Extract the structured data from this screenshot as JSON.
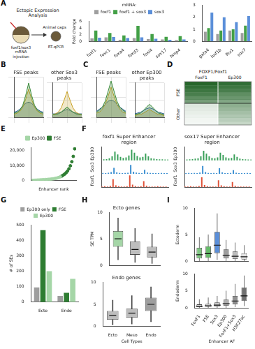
{
  "schematic": {
    "panel": "A",
    "title": "Ectopic Expression Analysis",
    "labels": [
      "foxf1/sox3 mRNA injection",
      "Animal caps",
      "RT-qPCR"
    ]
  },
  "heatmap": {
    "panel": "D",
    "title": "FOXF1/Foxf1",
    "columns": [
      "FoxF1",
      "Ep300"
    ],
    "color": "#1b5e20",
    "row_groups": [
      {
        "label": "FSE",
        "cells": [
          [
            0.95,
            0.9
          ],
          [
            0.9,
            0.85
          ],
          [
            0.85,
            0.8
          ],
          [
            0.8,
            0.7
          ],
          [
            0.7,
            0.65
          ],
          [
            0.6,
            0.55
          ]
        ]
      },
      {
        "label": "Other",
        "cells": [
          [
            0.15,
            0.5
          ],
          [
            0.12,
            0.45
          ],
          [
            0.1,
            0.4
          ],
          [
            0.08,
            0.35
          ],
          [
            0.06,
            0.3
          ],
          [
            0.05,
            0.25
          ]
        ]
      }
    ]
  },
  "chart_data": [
    {
      "type": "bar",
      "legend": "top",
      "legend_title": "mRNA:",
      "ylabel": "Fold change",
      "categories": [
        "foxf1",
        "foxc1",
        "foxa4",
        "foxd3",
        "foxi4",
        "sox17",
        "bmp4"
      ],
      "series": [
        {
          "name": "foxf1",
          "color": "#9e9e9e",
          "values": [
            0.9,
            1.2,
            0.5,
            1.0,
            0.7,
            0.6,
            0.4
          ]
        },
        {
          "name": "foxf1 + sox3",
          "color": "#43a047",
          "values": [
            3.2,
            2.5,
            1.8,
            4.6,
            2.2,
            1.4,
            1.6
          ]
        },
        {
          "name": "sox3",
          "color": "#5b8fd9",
          "values": [
            1.1,
            1.3,
            1.0,
            1.2,
            0.8,
            0.5,
            0.6
          ]
        }
      ],
      "ylim": [
        0,
        6
      ],
      "yticks": [
        0,
        2,
        4,
        6
      ],
      "grid": false
    },
    {
      "type": "bar",
      "categories": [
        "gata4",
        "hnf1b",
        "lhx1",
        "sox7"
      ],
      "series": [
        {
          "color": "#9e9e9e",
          "values": [
            0.8,
            0.6,
            0.9,
            0.7
          ]
        },
        {
          "color": "#43a047",
          "values": [
            1.1,
            0.9,
            1.0,
            1.3
          ]
        },
        {
          "color": "#5b8fd9",
          "values": [
            2.4,
            2.0,
            1.6,
            2.1
          ]
        }
      ],
      "ylim": [
        0,
        3
      ],
      "yticks": [
        0,
        1,
        2,
        3
      ],
      "grid": false
    },
    {
      "type": "line",
      "panel": "B",
      "title": "FSE peaks",
      "tick_labels": false,
      "grid": true,
      "x": [
        -5,
        -4,
        -3,
        -2,
        -1,
        0,
        1,
        2,
        3,
        4,
        5
      ],
      "xlim": [
        -5,
        5
      ],
      "xticks": [
        -5,
        0,
        5
      ],
      "ylim": [
        0,
        4
      ],
      "yticks": [
        0,
        2,
        4
      ],
      "series": [
        {
          "color": "#3a8a3a",
          "values": [
            0.4,
            0.5,
            0.7,
            1.2,
            2.2,
            3.4,
            2.2,
            1.2,
            0.7,
            0.5,
            0.4
          ]
        },
        {
          "color": "#c9a227",
          "values": [
            0.3,
            0.4,
            0.6,
            1.0,
            1.8,
            2.8,
            1.8,
            1.0,
            0.6,
            0.4,
            0.3
          ]
        },
        {
          "color": "#2f5f8f",
          "values": [
            0.5,
            0.6,
            0.8,
            1.1,
            1.4,
            1.5,
            1.4,
            1.1,
            0.8,
            0.6,
            0.5
          ]
        }
      ]
    },
    {
      "type": "line",
      "title": "other Sox3 peaks",
      "tick_labels": false,
      "grid": true,
      "x": [
        -5,
        -4,
        -3,
        -2,
        -1,
        0,
        1,
        2,
        3,
        4,
        5
      ],
      "xlim": [
        -5,
        5
      ],
      "xticks": [
        -5,
        0,
        5
      ],
      "ylim": [
        0,
        4
      ],
      "yticks": [
        0,
        2,
        4
      ],
      "series": [
        {
          "color": "#3a8a3a",
          "values": [
            0.3,
            0.3,
            0.4,
            0.6,
            0.9,
            1.2,
            0.9,
            0.6,
            0.4,
            0.3,
            0.3
          ]
        },
        {
          "color": "#c9a227",
          "values": [
            0.3,
            0.4,
            0.6,
            1.1,
            2.0,
            3.0,
            2.0,
            1.1,
            0.6,
            0.4,
            0.3
          ]
        },
        {
          "color": "#2f5f8f",
          "values": [
            0.4,
            0.4,
            0.5,
            0.6,
            0.8,
            0.9,
            0.8,
            0.6,
            0.5,
            0.4,
            0.4
          ]
        }
      ]
    },
    {
      "type": "line",
      "panel": "C",
      "title": "FSE peaks",
      "tick_labels": false,
      "grid": true,
      "x": [
        -5,
        -4,
        -3,
        -2,
        -1,
        0,
        1,
        2,
        3,
        4,
        5
      ],
      "xlim": [
        -5,
        5
      ],
      "xticks": [
        -5,
        0,
        5
      ],
      "ylim": [
        0,
        4
      ],
      "yticks": [
        0,
        2,
        4
      ],
      "series": [
        {
          "color": "#3a8a3a",
          "values": [
            0.5,
            0.7,
            1.0,
            1.6,
            2.6,
            3.6,
            2.6,
            1.6,
            1.0,
            0.7,
            0.5
          ]
        },
        {
          "color": "#c9a227",
          "values": [
            0.4,
            0.5,
            0.8,
            1.3,
            2.1,
            3.0,
            2.1,
            1.3,
            0.8,
            0.5,
            0.4
          ]
        },
        {
          "color": "#2f5f8f",
          "values": [
            0.6,
            0.8,
            1.0,
            1.3,
            1.6,
            1.7,
            1.6,
            1.3,
            1.0,
            0.8,
            0.6
          ]
        }
      ]
    },
    {
      "type": "line",
      "title": "other Ep300 peaks",
      "tick_labels": false,
      "grid": true,
      "x": [
        -5,
        -4,
        -3,
        -2,
        -1,
        0,
        1,
        2,
        3,
        4,
        5
      ],
      "xlim": [
        -5,
        5
      ],
      "xticks": [
        -5,
        0,
        5
      ],
      "ylim": [
        0,
        4
      ],
      "yticks": [
        0,
        2,
        4
      ],
      "series": [
        {
          "color": "#3a8a3a",
          "values": [
            0.3,
            0.4,
            0.5,
            0.8,
            1.2,
            1.5,
            1.2,
            0.8,
            0.5,
            0.4,
            0.3
          ]
        },
        {
          "color": "#c9a227",
          "values": [
            0.2,
            0.3,
            0.3,
            0.5,
            0.7,
            0.9,
            0.7,
            0.5,
            0.3,
            0.3,
            0.2
          ]
        },
        {
          "color": "#2f5f8f",
          "values": [
            0.4,
            0.5,
            0.6,
            0.8,
            1.0,
            1.1,
            1.0,
            0.8,
            0.6,
            0.5,
            0.4
          ]
        }
      ]
    },
    {
      "type": "scatter",
      "panel": "E",
      "legend": "top",
      "xlabel": "Enhancer rank",
      "tick_labels": "y",
      "grid": false,
      "xlim": [
        0,
        31
      ],
      "xticks": [
        0,
        10,
        20,
        30
      ],
      "ylim": [
        0,
        22000
      ],
      "yticks": [
        0,
        {
          "value": 10000,
          "label": "10,000"
        },
        {
          "value": 20000,
          "label": "20,000"
        }
      ],
      "series": [
        {
          "name": "Ep300",
          "color": "#a5d6a7",
          "x": [
            1,
            2,
            3,
            4,
            5,
            6,
            7,
            8,
            9,
            10,
            11,
            12,
            13,
            14,
            15,
            16,
            17,
            18,
            19,
            20
          ],
          "values": [
            200,
            250,
            300,
            350,
            400,
            450,
            500,
            560,
            620,
            700,
            780,
            860,
            950,
            1050,
            1200,
            1350,
            1550,
            1800,
            2100,
            2500
          ]
        },
        {
          "name": "FSE",
          "color": "#2e7d32",
          "x": [
            21,
            22,
            23,
            24,
            25,
            26,
            27,
            28,
            29,
            30
          ],
          "values": [
            3000,
            3600,
            4300,
            5200,
            6300,
            7800,
            9800,
            12500,
            16000,
            21000
          ]
        }
      ]
    },
    {
      "type": "tracks",
      "panel": "F",
      "title": "foxf1 Super Enhancer region",
      "tick_labels": false,
      "grid": false,
      "ylim": [
        0,
        70
      ],
      "yticks": [
        0,
        70
      ],
      "series": [
        {
          "name": "Foxf1",
          "color": "#e0533a",
          "values": [
            2,
            3,
            2,
            5,
            40,
            8,
            3,
            2,
            2,
            3,
            60,
            12,
            4,
            2,
            3,
            30,
            6,
            2,
            2,
            2,
            3,
            2,
            2,
            2
          ]
        },
        {
          "name": "Sox3",
          "color": "#3b8fd1",
          "values": [
            3,
            2,
            4,
            8,
            30,
            6,
            3,
            2,
            3,
            4,
            45,
            10,
            5,
            3,
            2,
            20,
            5,
            3,
            2,
            2,
            2,
            3,
            2,
            2
          ]
        },
        {
          "name": "Ep300",
          "color": "#3aa05a",
          "values": [
            5,
            6,
            10,
            20,
            45,
            30,
            18,
            12,
            15,
            25,
            55,
            40,
            22,
            15,
            18,
            35,
            20,
            10,
            8,
            6,
            5,
            5,
            4,
            4
          ]
        }
      ]
    },
    {
      "type": "tracks",
      "title": "sox17 Super Enhancer region",
      "tick_labels": false,
      "grid": false,
      "ylim": [
        0,
        70
      ],
      "yticks": [
        0,
        70
      ],
      "series": [
        {
          "name": "Foxf1",
          "color": "#e0533a",
          "values": [
            2,
            2,
            3,
            2,
            2,
            4,
            50,
            10,
            3,
            2,
            2,
            2,
            35,
            8,
            3,
            2,
            2,
            25,
            5,
            2,
            2,
            2,
            2,
            2
          ]
        },
        {
          "name": "Sox3",
          "color": "#3b8fd1",
          "values": [
            2,
            3,
            2,
            3,
            2,
            5,
            40,
            8,
            3,
            2,
            3,
            2,
            28,
            6,
            2,
            2,
            3,
            18,
            4,
            2,
            2,
            2,
            3,
            2
          ]
        },
        {
          "name": "Ep300",
          "color": "#3aa05a",
          "values": [
            4,
            5,
            6,
            8,
            10,
            20,
            50,
            35,
            20,
            12,
            10,
            15,
            40,
            28,
            15,
            10,
            12,
            30,
            18,
            8,
            6,
            5,
            4,
            4
          ]
        }
      ]
    },
    {
      "type": "bar",
      "panel": "G",
      "legend": "top",
      "ylabel": "# of SEs",
      "categories": [
        "Ecto",
        "Endo"
      ],
      "series": [
        {
          "name": "Ep300 only",
          "color": "#9e9e9e",
          "values": [
            95,
            40
          ]
        },
        {
          "name": "FSE",
          "color": "#2e7d32",
          "values": [
            465,
            60
          ]
        },
        {
          "name": "Ep300",
          "color": "#a5d6a7",
          "values": [
            200,
            150
          ]
        }
      ],
      "ylim": [
        0,
        500
      ],
      "yticks": [
        0,
        100,
        200,
        300,
        400,
        500
      ],
      "grid": false
    },
    {
      "type": "box",
      "panel": "H",
      "title": "Ecto genes",
      "ylabel": "SE TPM",
      "tick_labels": "y",
      "grid": false,
      "categories": [
        "Ecto",
        "Meso",
        "Endo"
      ],
      "boxes": [
        [
          1,
          3.5,
          5,
          6.5,
          9
        ],
        [
          0.5,
          2,
          3,
          4.5,
          7
        ],
        [
          0.3,
          1.5,
          2.5,
          3.5,
          6
        ]
      ],
      "colors": [
        "#a5d6a7",
        "#bdbdbd",
        "#bdbdbd"
      ],
      "ylim": [
        0,
        10
      ],
      "yticks": [
        0,
        5,
        10
      ]
    },
    {
      "type": "box",
      "title": "Endo genes",
      "xlabel": "Cell Types",
      "grid": false,
      "categories": [
        "Ecto",
        "Meso",
        "Endo"
      ],
      "boxes": [
        [
          0.3,
          1.5,
          2.5,
          3.5,
          6
        ],
        [
          0.5,
          2,
          3,
          4,
          7
        ],
        [
          1,
          3.5,
          5,
          6.5,
          9
        ]
      ],
      "colors": [
        "#bdbdbd",
        "#bdbdbd",
        "#9e9e9e"
      ],
      "ylim": [
        0,
        10
      ],
      "yticks": [
        0,
        5,
        10
      ]
    },
    {
      "type": "box",
      "panel": "I",
      "ylabel": "Ectoderm",
      "tick_labels": "y",
      "grid": false,
      "categories": [
        "FoxF1",
        "FSE",
        "Sox3",
        "Ep300",
        "FoxF1+Sox3",
        "H3K27ac"
      ],
      "boxes": [
        [
          0,
          0.5,
          1.2,
          2.5,
          4.5
        ],
        [
          0,
          0.6,
          1.4,
          2.8,
          5
        ],
        [
          0.2,
          1.5,
          3,
          5.5,
          9
        ],
        [
          0,
          0.5,
          1.1,
          2.2,
          4
        ],
        [
          0,
          0.4,
          0.9,
          1.8,
          3.5
        ],
        [
          0,
          0.3,
          0.8,
          1.5,
          3
        ]
      ],
      "colors": [
        "#81c784",
        "#66bb6a",
        "#5b8fd9",
        "#9e9e9e",
        "#bdbdbd",
        "#e0e0e0"
      ],
      "ylim": [
        0,
        10
      ],
      "yticks": [
        0,
        5,
        10
      ]
    },
    {
      "type": "box",
      "ylabel": "Endoderm",
      "xlabel": "Enhancer AF",
      "grid": false,
      "categories": [
        "FoxF1",
        "FSE",
        "Sox3",
        "Ep300",
        "FoxF1+Sox3",
        "H3K27ac"
      ],
      "boxes": [
        [
          0,
          0.2,
          0.5,
          1,
          2.5
        ],
        [
          0,
          0.3,
          0.6,
          1.2,
          3
        ],
        [
          0,
          0.4,
          0.8,
          1.6,
          3.5
        ],
        [
          0,
          0.6,
          1.2,
          2.4,
          5
        ],
        [
          0.2,
          1,
          2,
          3.5,
          7
        ],
        [
          0.5,
          2,
          3.5,
          6,
          9.5
        ]
      ],
      "colors": [
        "#e0e0e0",
        "#d6d6d6",
        "#c8c8c8",
        "#b0b0b0",
        "#909090",
        "#707070"
      ],
      "ylim": [
        0,
        10
      ],
      "yticks": [
        0,
        5,
        10
      ]
    }
  ]
}
